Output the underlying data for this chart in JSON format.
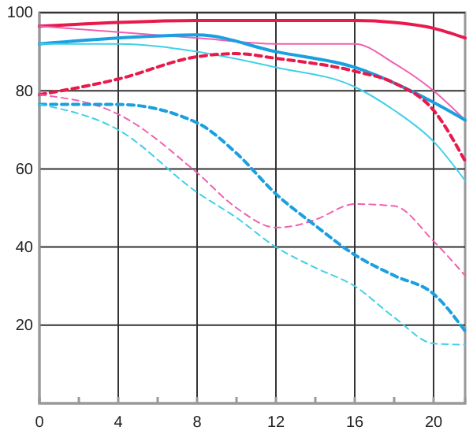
{
  "chart_data": {
    "type": "line",
    "xlim": [
      0,
      21.6
    ],
    "ylim": [
      0,
      100
    ],
    "xticks": [
      0,
      {
        "value": 2,
        "label": null
      },
      4,
      {
        "value": 6,
        "label": null
      },
      8,
      {
        "value": 10,
        "label": null
      },
      12,
      {
        "value": 14,
        "label": null
      },
      16,
      {
        "value": 18,
        "label": null
      },
      20
    ],
    "yticks": [
      20,
      40,
      60,
      80,
      100
    ],
    "grid": true,
    "marker": "none",
    "series": [
      {
        "color": "#e8194b",
        "line_style": "solid",
        "x": [
          0,
          4,
          8,
          12,
          16,
          18,
          20,
          21.6
        ],
        "values": [
          96.5,
          97.5,
          98,
          98,
          98,
          97.5,
          96,
          93.5
        ]
      },
      {
        "color": "#f060b0",
        "line_style": "solid",
        "x": [
          0,
          4,
          8,
          12,
          16,
          18,
          20,
          21.6
        ],
        "values": [
          96.5,
          95,
          93.5,
          92,
          92,
          87,
          80,
          72.5
        ]
      },
      {
        "color": "#1aa0e0",
        "line_style": "solid",
        "x": [
          0,
          4,
          8,
          12,
          16,
          20,
          21.6
        ],
        "values": [
          92,
          93.5,
          94.3,
          90,
          86,
          77,
          72.5
        ]
      },
      {
        "color": "#40d0e8",
        "line_style": "solid",
        "x": [
          0,
          4,
          8,
          12,
          16,
          18,
          20,
          21.6
        ],
        "values": [
          92,
          92,
          90,
          86,
          81,
          75,
          67,
          57
        ]
      },
      {
        "color": "#e8194b",
        "line_style": "dashed",
        "x": [
          0,
          4,
          8,
          10,
          12,
          16,
          18,
          20,
          21.6
        ],
        "values": [
          79,
          83,
          88.7,
          89.5,
          88.3,
          85,
          82,
          75,
          62
        ]
      },
      {
        "color": "#f060b0",
        "line_style": "dashed",
        "x": [
          0,
          4,
          8,
          10,
          12,
          13,
          14,
          16,
          18,
          20,
          21.6
        ],
        "values": [
          79,
          74,
          59,
          50,
          45,
          45.5,
          47,
          51,
          50.5,
          41.5,
          32.7
        ]
      },
      {
        "color": "#1aa0e0",
        "line_style": "dashed",
        "x": [
          0,
          4,
          8,
          10,
          12,
          14,
          16,
          18,
          20,
          21.6
        ],
        "values": [
          76.5,
          76.5,
          71.8,
          64,
          53.6,
          45.5,
          38,
          32.7,
          28,
          18.5
        ]
      },
      {
        "color": "#40d0e8",
        "line_style": "dashed",
        "x": [
          0,
          4,
          8,
          10,
          12,
          14,
          16,
          18,
          20,
          21.6
        ],
        "values": [
          76.5,
          70,
          54,
          47.5,
          40,
          34.7,
          30,
          22,
          15.3,
          15
        ]
      }
    ]
  }
}
